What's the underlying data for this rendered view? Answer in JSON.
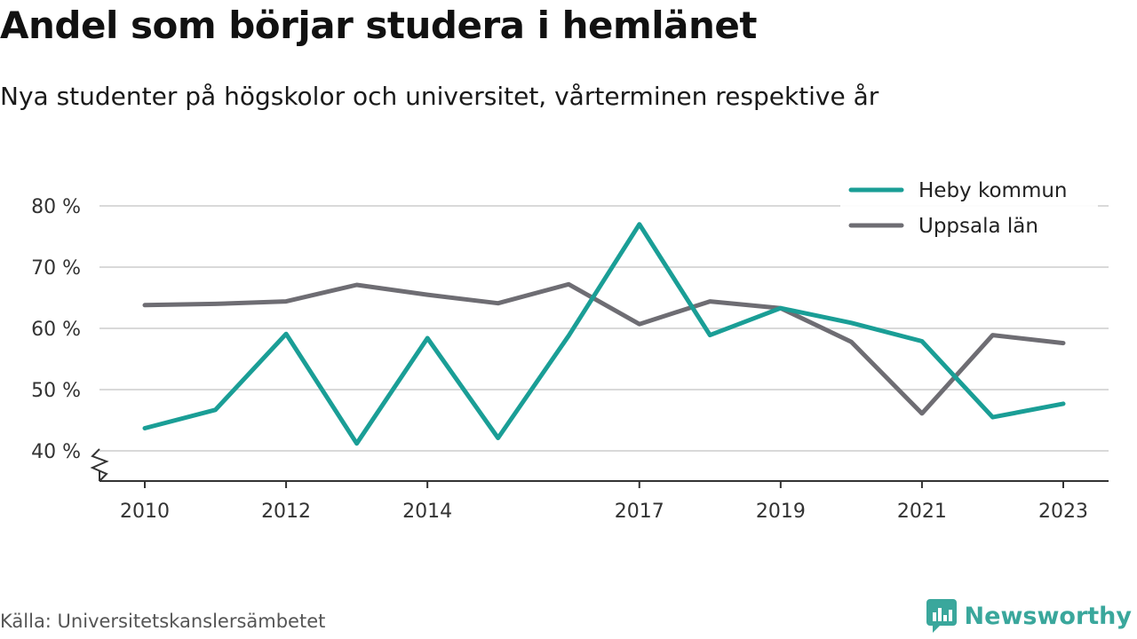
{
  "title": "Andel som börjar studera i hemlänet",
  "subtitle": "Nya studenter på högskolor och universitet, vårterminen respektive år",
  "source": "Källa: Universitetskanslersämbetet",
  "brand": {
    "name": "Newsworthy",
    "icon": "newsworthy-logo-icon",
    "color": "#3aa79c"
  },
  "chart_data": {
    "type": "line",
    "title": "Andel som börjar studera i hemlänet",
    "subtitle": "Nya studenter på högskolor och universitet, vårterminen respektive år",
    "x": [
      2010,
      2011,
      2012,
      2013,
      2014,
      2015,
      2016,
      2017,
      2018,
      2019,
      2020,
      2021,
      2022,
      2023
    ],
    "x_tick_labels": [
      "2010",
      "2012",
      "2014",
      "2017",
      "2019",
      "2021",
      "2023"
    ],
    "y_tick_labels": [
      "40 %",
      "50 %",
      "60 %",
      "70 %",
      "80 %"
    ],
    "ylim": [
      35,
      80
    ],
    "y_unit": "%",
    "axis_break": true,
    "grid": "horizontal",
    "legend_position": "top-right",
    "series": [
      {
        "name": "Heby kommun",
        "color": "#1a9e96",
        "values": [
          43.7,
          46.7,
          59.1,
          41.2,
          58.4,
          42.1,
          58.8,
          77.0,
          58.9,
          63.3,
          60.9,
          57.9,
          45.5,
          47.7
        ]
      },
      {
        "name": "Uppsala län",
        "color": "#6e6d73",
        "values": [
          63.8,
          64.0,
          64.4,
          67.1,
          65.5,
          64.1,
          67.2,
          60.7,
          64.4,
          63.3,
          57.8,
          46.1,
          58.9,
          57.6
        ]
      }
    ]
  }
}
